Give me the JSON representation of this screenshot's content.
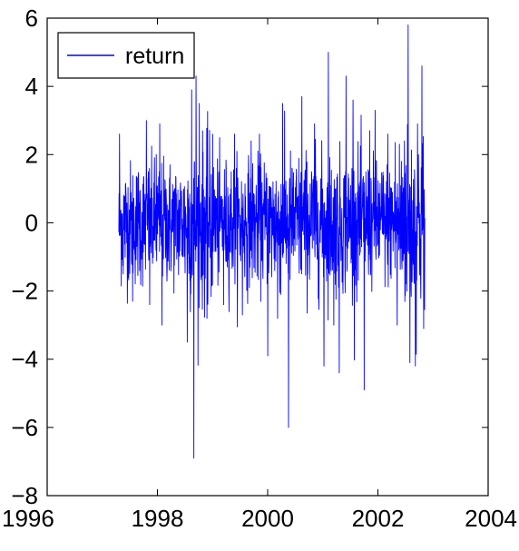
{
  "chart_data": {
    "type": "line",
    "title": "",
    "xlabel": "",
    "ylabel": "",
    "xlim": [
      1996,
      2004
    ],
    "ylim": [
      -8,
      6
    ],
    "xticks": [
      1996,
      1998,
      2000,
      2002,
      2004
    ],
    "yticks": [
      -8,
      -6,
      -4,
      -2,
      0,
      2,
      4,
      6
    ],
    "grid": false,
    "legend": {
      "placement": "top-left"
    },
    "series": [
      {
        "name": "return",
        "color": "#0000ff",
        "x_start": 1997.3,
        "x_end": 2002.85,
        "spikes": [
          [
            1997.31,
            2.6
          ],
          [
            1997.38,
            -1.5
          ],
          [
            1997.55,
            -2.3
          ],
          [
            1997.8,
            3.0
          ],
          [
            1997.86,
            -2.4
          ],
          [
            1997.98,
            2.0
          ],
          [
            1998.04,
            2.9
          ],
          [
            1998.08,
            -3.0
          ],
          [
            1998.54,
            -3.5
          ],
          [
            1998.62,
            3.9
          ],
          [
            1998.66,
            -6.9
          ],
          [
            1998.7,
            4.3
          ],
          [
            1998.76,
            3.5
          ],
          [
            1998.9,
            -2.8
          ],
          [
            1999.0,
            2.6
          ],
          [
            1999.2,
            -2.4
          ],
          [
            1999.4,
            2.6
          ],
          [
            1999.54,
            -2.7
          ],
          [
            1999.7,
            2.4
          ],
          [
            1999.85,
            2.6
          ],
          [
            2000.0,
            -3.9
          ],
          [
            2000.18,
            -2.8
          ],
          [
            2000.27,
            3.5
          ],
          [
            2000.38,
            -6.0
          ],
          [
            2000.62,
            3.7
          ],
          [
            2000.85,
            2.9
          ],
          [
            2001.02,
            -4.2
          ],
          [
            2001.1,
            5.0
          ],
          [
            2001.2,
            -3.0
          ],
          [
            2001.3,
            -4.4
          ],
          [
            2001.42,
            4.3
          ],
          [
            2001.55,
            3.6
          ],
          [
            2001.75,
            -4.9
          ],
          [
            2001.85,
            2.7
          ],
          [
            2001.95,
            3.3
          ],
          [
            2002.18,
            2.6
          ],
          [
            2002.35,
            -3.0
          ],
          [
            2002.48,
            2.4
          ],
          [
            2002.55,
            5.8
          ],
          [
            2002.58,
            -4.1
          ],
          [
            2002.68,
            -4.2
          ],
          [
            2002.72,
            2.9
          ],
          [
            2002.8,
            4.6
          ],
          [
            2002.83,
            -3.1
          ]
        ]
      }
    ]
  }
}
